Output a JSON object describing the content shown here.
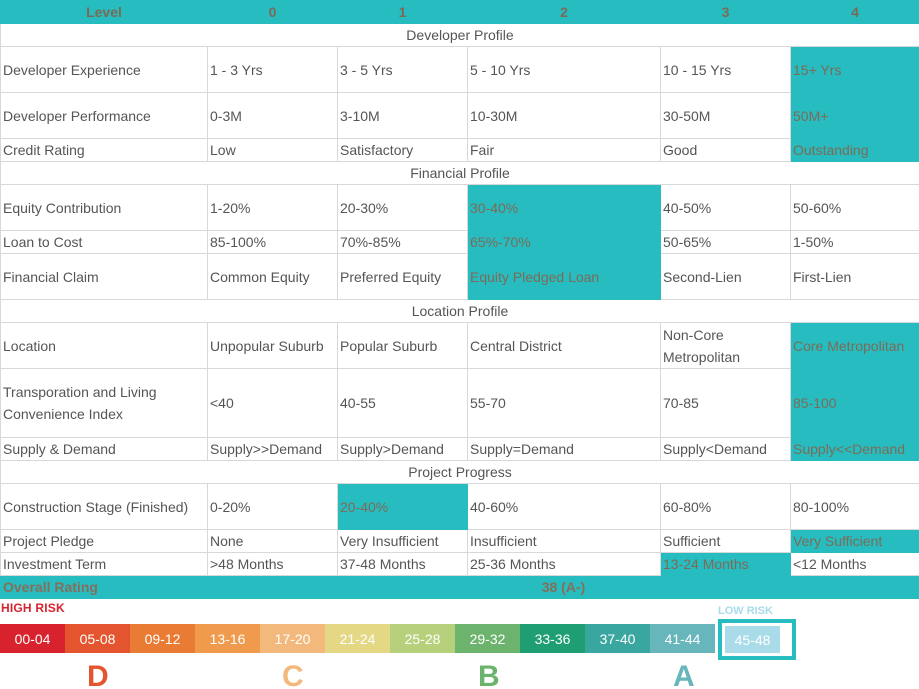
{
  "header": {
    "level_label": "Level",
    "levels": [
      "0",
      "1",
      "2",
      "3",
      "4"
    ]
  },
  "sections": {
    "developer": "Developer Profile",
    "financial": "Financial Profile",
    "location": "Location Profile",
    "project": "Project Progress"
  },
  "rows": {
    "dev_exp": {
      "label": "Developer Experience",
      "cells": [
        "1 - 3 Yrs",
        "3 - 5 Yrs",
        "5 - 10 Yrs",
        "10 - 15 Yrs",
        "15+ Yrs"
      ]
    },
    "dev_perf": {
      "label": "Developer Performance",
      "cells": [
        "0-3M",
        "3-10M",
        "10-30M",
        "30-50M",
        "50M+"
      ]
    },
    "credit": {
      "label": "Credit Rating",
      "cells": [
        "Low",
        "Satisfactory",
        "Fair",
        "Good",
        "Outstanding"
      ]
    },
    "equity": {
      "label": "Equity Contribution",
      "cells": [
        "1-20%",
        "20-30%",
        "30-40%",
        "40-50%",
        "50-60%"
      ]
    },
    "ltc": {
      "label": "Loan to Cost",
      "cells": [
        "85-100%",
        "70%-85%",
        "65%-70%",
        "50-65%",
        "1-50%"
      ]
    },
    "claim": {
      "label": "Financial Claim",
      "cells": [
        "Common Equity",
        "Preferred Equity",
        "Equity Pledged Loan",
        "Second-Lien",
        "First-Lien"
      ]
    },
    "location": {
      "label": "Location",
      "cells": [
        "Unpopular Suburb",
        "Popular Suburb",
        "Central District",
        "Non-Core Metropolitan",
        "Core Metropolitan"
      ]
    },
    "transport": {
      "label": "Transporation and Living Convenience Index",
      "cells": [
        "<40",
        "40-55",
        "55-70",
        "70-85",
        "85-100"
      ]
    },
    "supply": {
      "label": "Supply & Demand",
      "cells": [
        "Supply>>Demand",
        "Supply>Demand",
        "Supply=Demand",
        "Supply<Demand",
        "Supply<<Demand"
      ]
    },
    "construction": {
      "label": "Construction Stage (Finished)",
      "cells": [
        "0-20%",
        "20-40%",
        "40-60%",
        "60-80%",
        "80-100%"
      ]
    },
    "pledge": {
      "label": "Project Pledge",
      "cells": [
        "None",
        "Very Insufficient",
        "Insufficient",
        "Sufficient",
        "Very Sufficient"
      ]
    },
    "term": {
      "label": "Investment Term",
      "cells": [
        ">48 Months",
        "37-48 Months",
        "25-36 Months",
        "13-24 Months",
        "<12 Months"
      ]
    }
  },
  "overall": {
    "label": "Overall Rating",
    "score": "38 (A-)"
  },
  "risk": {
    "high_label": "HIGH RISK",
    "low_label": "LOW RISK"
  },
  "scale": [
    {
      "label": "00-04",
      "color": "#d8232f"
    },
    {
      "label": "05-08",
      "color": "#e4542e"
    },
    {
      "label": "09-12",
      "color": "#ea7b34"
    },
    {
      "label": "13-16",
      "color": "#ef9a4c"
    },
    {
      "label": "17-20",
      "color": "#f3b97c"
    },
    {
      "label": "21-24",
      "color": "#e4d884"
    },
    {
      "label": "25-28",
      "color": "#b6d07b"
    },
    {
      "label": "29-32",
      "color": "#6cb36d"
    },
    {
      "label": "33-36",
      "color": "#1f9e73"
    },
    {
      "label": "37-40",
      "color": "#3aa6a0"
    },
    {
      "label": "41-44",
      "color": "#66b6bb"
    }
  ],
  "selected_segment": "45-48",
  "grades": [
    {
      "label": "D",
      "color": "#e4542e"
    },
    {
      "label": "C",
      "color": "#f3b97c"
    },
    {
      "label": "B",
      "color": "#6cb36d"
    },
    {
      "label": "A",
      "color": "#66b6bb"
    }
  ],
  "accent_color": "#27bcc0"
}
